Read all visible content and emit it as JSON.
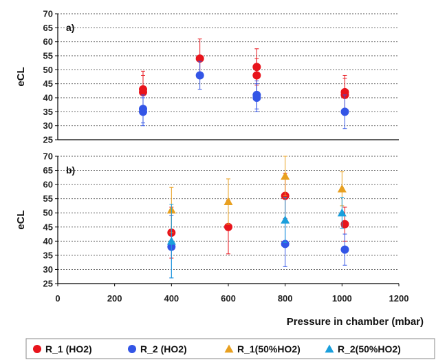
{
  "chart_data": [
    {
      "type": "scatter",
      "panel_label": "a)",
      "ylabel": "eCL",
      "ylim": [
        25,
        70
      ],
      "yticks": [
        25,
        30,
        35,
        40,
        45,
        50,
        55,
        60,
        65,
        70
      ],
      "grid": true,
      "series": [
        {
          "name": "R_1 (HO2)",
          "marker": "circle",
          "color": "#e8141c",
          "points": [
            {
              "x": 300,
              "y": 43,
              "err": 6.5
            },
            {
              "x": 300,
              "y": 42,
              "err": 6
            },
            {
              "x": 500,
              "y": 54,
              "err": 7
            },
            {
              "x": 700,
              "y": 51,
              "err": 6.5
            },
            {
              "x": 700,
              "y": 48,
              "err": 6
            },
            {
              "x": 1010,
              "y": 42,
              "err": 6
            },
            {
              "x": 1010,
              "y": 41,
              "err": 6
            }
          ]
        },
        {
          "name": "R_2 (HO2)",
          "marker": "circle",
          "color": "#3355e6",
          "points": [
            {
              "x": 300,
              "y": 36,
              "err": 5
            },
            {
              "x": 300,
              "y": 35,
              "err": 5
            },
            {
              "x": 500,
              "y": 48,
              "err": 5
            },
            {
              "x": 700,
              "y": 41,
              "err": 5
            },
            {
              "x": 700,
              "y": 40,
              "err": 5
            },
            {
              "x": 1010,
              "y": 35,
              "err": 6
            }
          ]
        }
      ]
    },
    {
      "type": "scatter",
      "panel_label": "b)",
      "ylabel": "eCL",
      "xlabel": "Pressure in chamber (mbar)",
      "ylim": [
        25,
        70
      ],
      "yticks": [
        25,
        30,
        35,
        40,
        45,
        50,
        55,
        60,
        65,
        70
      ],
      "xlim": [
        0,
        1200
      ],
      "xticks": [
        0,
        200,
        400,
        600,
        800,
        1000,
        1200
      ],
      "grid": true,
      "series": [
        {
          "name": "R_1 (HO2)",
          "marker": "circle",
          "color": "#e8141c",
          "points": [
            {
              "x": 400,
              "y": 43,
              "err": 9
            },
            {
              "x": 600,
              "y": 45,
              "err": 9.5
            },
            {
              "x": 800,
              "y": 56,
              "err": 8
            },
            {
              "x": 1010,
              "y": 46,
              "err": 6
            }
          ]
        },
        {
          "name": "R_2 (HO2)",
          "marker": "circle",
          "color": "#3355e6",
          "points": [
            {
              "x": 400,
              "y": 38,
              "err": 11
            },
            {
              "x": 800,
              "y": 39,
              "err": 8
            },
            {
              "x": 1010,
              "y": 37,
              "err": 5.5
            }
          ]
        },
        {
          "name": "R_1(50%HO2)",
          "marker": "triangle",
          "color": "#e8a020",
          "points": [
            {
              "x": 400,
              "y": 51,
              "err": 8
            },
            {
              "x": 600,
              "y": 54,
              "err": 8
            },
            {
              "x": 800,
              "y": 63,
              "err": 7
            },
            {
              "x": 1000,
              "y": 58.5,
              "err": 6
            }
          ]
        },
        {
          "name": "R_2(50%HO2)",
          "marker": "triangle",
          "color": "#1a9fdc",
          "points": [
            {
              "x": 400,
              "y": 40,
              "err": 13
            },
            {
              "x": 800,
              "y": 47.5,
              "err": 8
            },
            {
              "x": 1000,
              "y": 50,
              "err": 5.5
            }
          ]
        }
      ]
    }
  ],
  "legend": [
    {
      "label": "R_1 (HO2)",
      "marker": "circle",
      "color": "#e8141c"
    },
    {
      "label": "R_2 (HO2)",
      "marker": "circle",
      "color": "#3355e6"
    },
    {
      "label": "R_1(50%HO2)",
      "marker": "triangle",
      "color": "#e8a020"
    },
    {
      "label": "R_2(50%HO2)",
      "marker": "triangle",
      "color": "#1a9fdc"
    }
  ]
}
